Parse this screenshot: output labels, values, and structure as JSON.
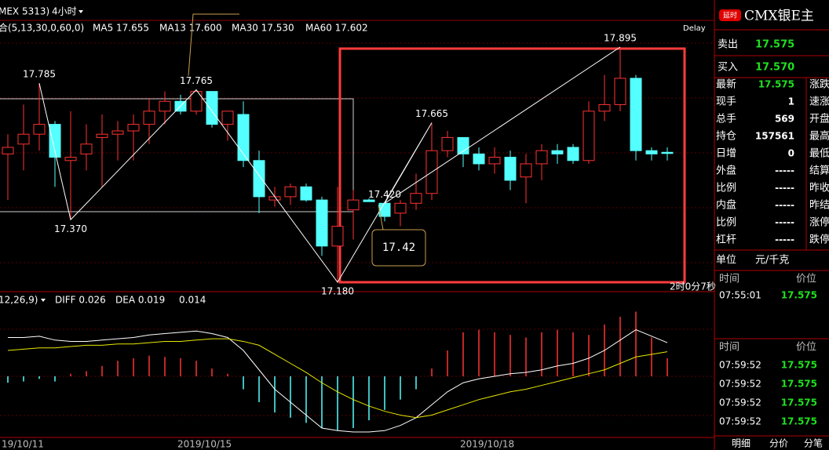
{
  "toolbar": {
    "symbol": "MEX 5313)",
    "period": "4小时",
    "indicator": "合(5,13,30,0,60,0)",
    "ma": [
      {
        "text": "MA5 17.655",
        "color": "#ffffff"
      },
      {
        "text": "MA13 17.600",
        "color": "#e8e800"
      },
      {
        "text": "MA30 17.530",
        "color": "#ff00ff"
      },
      {
        "text": "MA60 17.602",
        "color": "#9a9a9a"
      }
    ],
    "delay": "Delay"
  },
  "chart": {
    "up_color": "#ff3232",
    "down_color": "#54ffff",
    "candles": [
      {
        "open": 17.57,
        "high": 17.63,
        "low": 17.43,
        "close": 17.59
      },
      {
        "open": 17.6,
        "high": 17.72,
        "low": 17.52,
        "close": 17.63
      },
      {
        "open": 17.63,
        "high": 17.785,
        "low": 17.58,
        "close": 17.66
      },
      {
        "open": 17.66,
        "high": 17.67,
        "low": 17.47,
        "close": 17.56
      },
      {
        "open": 17.55,
        "high": 17.7,
        "low": 17.37,
        "close": 17.56
      },
      {
        "open": 17.57,
        "high": 17.66,
        "low": 17.52,
        "close": 17.6
      },
      {
        "open": 17.62,
        "high": 17.69,
        "low": 17.47,
        "close": 17.63
      },
      {
        "open": 17.63,
        "high": 17.67,
        "low": 17.55,
        "close": 17.64
      },
      {
        "open": 17.64,
        "high": 17.69,
        "low": 17.55,
        "close": 17.66
      },
      {
        "open": 17.66,
        "high": 17.74,
        "low": 17.6,
        "close": 17.7
      },
      {
        "open": 17.7,
        "high": 17.76,
        "low": 17.66,
        "close": 17.73
      },
      {
        "open": 17.73,
        "high": 17.75,
        "low": 17.69,
        "close": 17.7
      },
      {
        "open": 17.7,
        "high": 17.765,
        "low": 17.69,
        "close": 17.76
      },
      {
        "open": 17.76,
        "high": 17.76,
        "low": 17.65,
        "close": 17.66
      },
      {
        "open": 17.66,
        "high": 17.7,
        "low": 17.61,
        "close": 17.7
      },
      {
        "open": 17.69,
        "high": 17.73,
        "low": 17.53,
        "close": 17.55
      },
      {
        "open": 17.55,
        "high": 17.58,
        "low": 17.39,
        "close": 17.44
      },
      {
        "open": 17.43,
        "high": 17.47,
        "low": 17.41,
        "close": 17.44
      },
      {
        "open": 17.44,
        "high": 17.48,
        "low": 17.415,
        "close": 17.47
      },
      {
        "open": 17.47,
        "high": 17.48,
        "low": 17.425,
        "close": 17.43
      },
      {
        "open": 17.43,
        "high": 17.44,
        "low": 17.26,
        "close": 17.29
      },
      {
        "open": 17.29,
        "high": 17.47,
        "low": 17.18,
        "close": 17.35
      },
      {
        "open": 17.4,
        "high": 17.46,
        "low": 17.31,
        "close": 17.43
      },
      {
        "open": 17.43,
        "high": 17.435,
        "low": 17.425,
        "close": 17.425
      },
      {
        "open": 17.42,
        "high": 17.42,
        "low": 17.365,
        "close": 17.38
      },
      {
        "open": 17.39,
        "high": 17.43,
        "low": 17.35,
        "close": 17.42
      },
      {
        "open": 17.42,
        "high": 17.51,
        "low": 17.4,
        "close": 17.45
      },
      {
        "open": 17.45,
        "high": 17.665,
        "low": 17.43,
        "close": 17.58
      },
      {
        "open": 17.58,
        "high": 17.64,
        "low": 17.56,
        "close": 17.62
      },
      {
        "open": 17.62,
        "high": 17.62,
        "low": 17.53,
        "close": 17.57
      },
      {
        "open": 17.57,
        "high": 17.59,
        "low": 17.52,
        "close": 17.54
      },
      {
        "open": 17.54,
        "high": 17.59,
        "low": 17.51,
        "close": 17.56
      },
      {
        "open": 17.56,
        "high": 17.58,
        "low": 17.46,
        "close": 17.49
      },
      {
        "open": 17.5,
        "high": 17.57,
        "low": 17.42,
        "close": 17.54
      },
      {
        "open": 17.54,
        "high": 17.6,
        "low": 17.49,
        "close": 17.58
      },
      {
        "open": 17.58,
        "high": 17.6,
        "low": 17.54,
        "close": 17.57
      },
      {
        "open": 17.59,
        "high": 17.6,
        "low": 17.54,
        "close": 17.55
      },
      {
        "open": 17.55,
        "high": 17.73,
        "low": 17.54,
        "close": 17.7
      },
      {
        "open": 17.7,
        "high": 17.81,
        "low": 17.67,
        "close": 17.72
      },
      {
        "open": 17.72,
        "high": 17.895,
        "low": 17.7,
        "close": 17.8
      },
      {
        "open": 17.8,
        "high": 17.81,
        "low": 17.55,
        "close": 17.58
      },
      {
        "open": 17.58,
        "high": 17.59,
        "low": 17.55,
        "close": 17.57
      },
      {
        "open": 17.575,
        "high": 17.59,
        "low": 17.55,
        "close": 17.575
      }
    ],
    "annotations": [
      {
        "value": 17.785,
        "label": "17.785"
      },
      {
        "value": 17.37,
        "label": "17.370"
      },
      {
        "value": 17.765,
        "label": "17.765"
      },
      {
        "value": 17.18,
        "label": "17.180"
      },
      {
        "value": 17.665,
        "label": "17.665"
      },
      {
        "value": 17.42,
        "label": "17.420"
      },
      {
        "value": 17.895,
        "label": "17.895"
      }
    ],
    "callout": "17.42",
    "countdown": "2时0分7秒",
    "macd": {
      "params": "12,26,9)",
      "labels": [
        {
          "text": "DIFF 0.026",
          "color": "#ffffff"
        },
        {
          "text": "DEA 0.019",
          "color": "#e8e800"
        },
        {
          "text": "0.014",
          "color": "#ffffff"
        }
      ],
      "hist": [
        -0.005,
        -0.004,
        -0.002,
        -0.004,
        0.002,
        0.004,
        0.008,
        0.012,
        0.014,
        0.016,
        0.015,
        0.014,
        0.012,
        0.006,
        0.002,
        -0.01,
        -0.02,
        -0.028,
        -0.032,
        -0.036,
        -0.04,
        -0.042,
        -0.04,
        -0.034,
        -0.026,
        -0.018,
        -0.01,
        0.006,
        0.02,
        0.034,
        0.036,
        0.034,
        0.032,
        0.03,
        0.034,
        0.036,
        0.034,
        0.032,
        0.04,
        0.046,
        0.05,
        0.03,
        0.014
      ],
      "diff": [
        0.03,
        0.03,
        0.031,
        0.028,
        0.027,
        0.027,
        0.028,
        0.029,
        0.03,
        0.032,
        0.033,
        0.034,
        0.035,
        0.033,
        0.03,
        0.02,
        0.005,
        -0.01,
        -0.02,
        -0.03,
        -0.04,
        -0.042,
        -0.043,
        -0.043,
        -0.042,
        -0.038,
        -0.032,
        -0.022,
        -0.012,
        -0.005,
        -0.002,
        0,
        0.002,
        0.003,
        0.005,
        0.008,
        0.01,
        0.014,
        0.02,
        0.028,
        0.036,
        0.031,
        0.026
      ],
      "dea": [
        0.02,
        0.021,
        0.022,
        0.022,
        0.023,
        0.024,
        0.024,
        0.025,
        0.025,
        0.026,
        0.027,
        0.027,
        0.028,
        0.029,
        0.029,
        0.027,
        0.024,
        0.017,
        0.01,
        0.003,
        -0.005,
        -0.012,
        -0.018,
        -0.023,
        -0.027,
        -0.03,
        -0.032,
        -0.03,
        -0.026,
        -0.022,
        -0.018,
        -0.015,
        -0.012,
        -0.01,
        -0.007,
        -0.004,
        -0.001,
        0.002,
        0.005,
        0.01,
        0.015,
        0.017,
        0.019
      ]
    },
    "dates": [
      "19/10/11",
      "2019/10/15",
      "2019/10/18"
    ]
  },
  "side": {
    "badge": "延时",
    "name": "CMX银E主",
    "sell": [
      "卖出",
      "17.575"
    ],
    "buy": [
      "买入",
      "17.570"
    ],
    "rows": [
      [
        "最新",
        "17.575",
        "涨跌"
      ],
      [
        "现手",
        "1",
        "速涨"
      ],
      [
        "总手",
        "569",
        "开盘"
      ],
      [
        "持仓",
        "157561",
        "最高"
      ],
      [
        "日增",
        "0",
        "最低"
      ],
      [
        "外盘",
        "-----",
        "结算"
      ],
      [
        "比例",
        "-----",
        "昨收"
      ],
      [
        "内盘",
        "-----",
        "昨结"
      ],
      [
        "比例",
        "-----",
        "涨停"
      ],
      [
        "杠杆",
        "-----",
        "跌停"
      ]
    ],
    "unit": [
      "单位",
      "元/千克"
    ],
    "trades1": {
      "header": [
        "时间",
        "价位"
      ],
      "rows": [
        [
          "07:55:01",
          "17.575"
        ]
      ]
    },
    "trades2": {
      "header": [
        "时间",
        "价位"
      ],
      "rows": [
        [
          "07:59:52",
          "17.575"
        ],
        [
          "07:59:52",
          "17.575"
        ],
        [
          "07:59:52",
          "17.575"
        ],
        [
          "07:59:52",
          "17.575"
        ]
      ]
    },
    "tabs": [
      "明细",
      "分价",
      "分笔"
    ]
  }
}
